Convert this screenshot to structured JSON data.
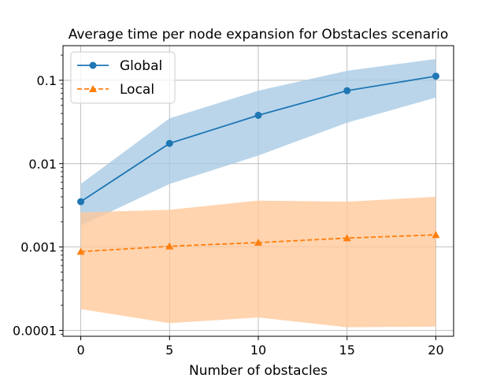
{
  "chart_data": {
    "type": "line",
    "title": "Average time per node expansion for Obstacles scenario",
    "xlabel": "Number of obstacles",
    "ylabel": "",
    "yscale": "log",
    "x": [
      0,
      5,
      10,
      15,
      20
    ],
    "xlim": [
      -1,
      21
    ],
    "ylim": [
      8.5e-05,
      0.26
    ],
    "xticks": [
      0,
      5,
      10,
      15,
      20
    ],
    "xtick_labels": [
      "0",
      "5",
      "10",
      "15",
      "20"
    ],
    "yticks": [
      0.0001,
      0.001,
      0.01,
      0.1
    ],
    "ytick_labels": [
      "0.0001",
      "0.001",
      "0.01",
      "0.1"
    ],
    "grid": true,
    "legend_position": "top-left",
    "series": [
      {
        "name": "Global",
        "values": [
          0.0035,
          0.0175,
          0.038,
          0.075,
          0.112
        ],
        "lower": [
          0.0018,
          0.0057,
          0.0125,
          0.031,
          0.062
        ],
        "upper": [
          0.0057,
          0.035,
          0.075,
          0.13,
          0.18
        ],
        "color": "#1f77b4",
        "band_color": "#a6c9e4",
        "marker": "circle",
        "linestyle": "solid"
      },
      {
        "name": "Local",
        "values": [
          0.00088,
          0.00102,
          0.00113,
          0.00128,
          0.0014
        ],
        "lower": [
          0.00018,
          0.000122,
          0.000143,
          0.000109,
          0.000111
        ],
        "upper": [
          0.0026,
          0.0028,
          0.0036,
          0.0035,
          0.004
        ],
        "color": "#ff7f0e",
        "band_color": "#ffc898",
        "marker": "triangle",
        "linestyle": "dashed"
      }
    ]
  }
}
